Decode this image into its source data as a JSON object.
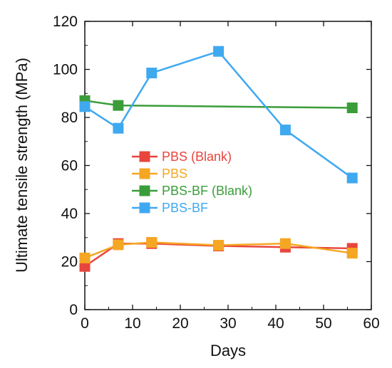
{
  "chart_data": {
    "type": "line",
    "title": "",
    "xlabel": "Days",
    "ylabel": "Ultimate tensile strength (MPa)",
    "xlim": [
      0,
      60
    ],
    "ylim": [
      0,
      120
    ],
    "xticks": [
      0,
      10,
      20,
      30,
      40,
      50,
      60
    ],
    "yticks": [
      0,
      20,
      40,
      60,
      80,
      100,
      120
    ],
    "grid": false,
    "legend_position": "center-left",
    "series": [
      {
        "name": "PBS (Blank)",
        "color": "#e8453c",
        "x": [
          0,
          7,
          14,
          28,
          42,
          56
        ],
        "y": [
          18,
          27.5,
          27.5,
          26.5,
          26,
          25.5
        ]
      },
      {
        "name": "PBS",
        "color": "#f5a623",
        "x": [
          0,
          7,
          14,
          28,
          42,
          56
        ],
        "y": [
          21.5,
          27,
          28,
          26.8,
          27.5,
          23.5
        ]
      },
      {
        "name": "PBS-BF (Blank)",
        "color": "#3a9d3a",
        "x": [
          0,
          7,
          56
        ],
        "y": [
          87,
          85,
          84
        ]
      },
      {
        "name": "PBS-BF",
        "color": "#3fa9f0",
        "x": [
          0,
          7,
          14,
          28,
          42,
          56
        ],
        "y": [
          84.5,
          75.5,
          98.5,
          107.5,
          74.8,
          54.8
        ]
      }
    ]
  }
}
